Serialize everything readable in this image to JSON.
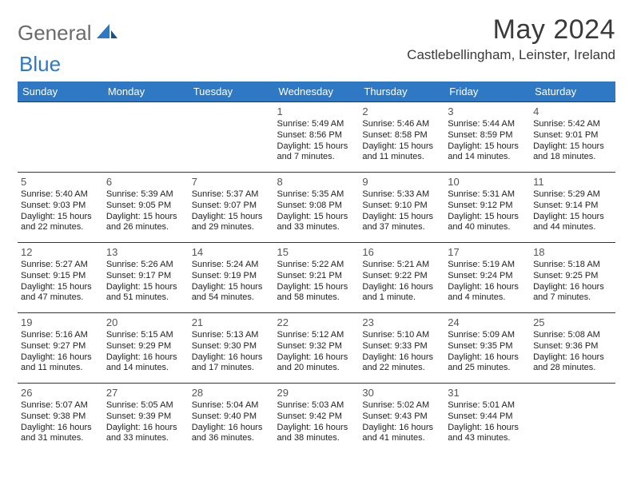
{
  "brand": {
    "part1": "General",
    "part2": "Blue"
  },
  "title": "May 2024",
  "location": "Castlebellingham, Leinster, Ireland",
  "colors": {
    "header_bg": "#2f78c4",
    "header_text": "#ffffff",
    "border": "#1f3a5f",
    "brand_gray": "#6b6b6b",
    "brand_blue": "#2f78c4"
  },
  "weekdays": [
    "Sunday",
    "Monday",
    "Tuesday",
    "Wednesday",
    "Thursday",
    "Friday",
    "Saturday"
  ],
  "weeks": [
    [
      {
        "n": "",
        "sr": "",
        "ss": "",
        "dl": ""
      },
      {
        "n": "",
        "sr": "",
        "ss": "",
        "dl": ""
      },
      {
        "n": "",
        "sr": "",
        "ss": "",
        "dl": ""
      },
      {
        "n": "1",
        "sr": "Sunrise: 5:49 AM",
        "ss": "Sunset: 8:56 PM",
        "dl": "Daylight: 15 hours and 7 minutes."
      },
      {
        "n": "2",
        "sr": "Sunrise: 5:46 AM",
        "ss": "Sunset: 8:58 PM",
        "dl": "Daylight: 15 hours and 11 minutes."
      },
      {
        "n": "3",
        "sr": "Sunrise: 5:44 AM",
        "ss": "Sunset: 8:59 PM",
        "dl": "Daylight: 15 hours and 14 minutes."
      },
      {
        "n": "4",
        "sr": "Sunrise: 5:42 AM",
        "ss": "Sunset: 9:01 PM",
        "dl": "Daylight: 15 hours and 18 minutes."
      }
    ],
    [
      {
        "n": "5",
        "sr": "Sunrise: 5:40 AM",
        "ss": "Sunset: 9:03 PM",
        "dl": "Daylight: 15 hours and 22 minutes."
      },
      {
        "n": "6",
        "sr": "Sunrise: 5:39 AM",
        "ss": "Sunset: 9:05 PM",
        "dl": "Daylight: 15 hours and 26 minutes."
      },
      {
        "n": "7",
        "sr": "Sunrise: 5:37 AM",
        "ss": "Sunset: 9:07 PM",
        "dl": "Daylight: 15 hours and 29 minutes."
      },
      {
        "n": "8",
        "sr": "Sunrise: 5:35 AM",
        "ss": "Sunset: 9:08 PM",
        "dl": "Daylight: 15 hours and 33 minutes."
      },
      {
        "n": "9",
        "sr": "Sunrise: 5:33 AM",
        "ss": "Sunset: 9:10 PM",
        "dl": "Daylight: 15 hours and 37 minutes."
      },
      {
        "n": "10",
        "sr": "Sunrise: 5:31 AM",
        "ss": "Sunset: 9:12 PM",
        "dl": "Daylight: 15 hours and 40 minutes."
      },
      {
        "n": "11",
        "sr": "Sunrise: 5:29 AM",
        "ss": "Sunset: 9:14 PM",
        "dl": "Daylight: 15 hours and 44 minutes."
      }
    ],
    [
      {
        "n": "12",
        "sr": "Sunrise: 5:27 AM",
        "ss": "Sunset: 9:15 PM",
        "dl": "Daylight: 15 hours and 47 minutes."
      },
      {
        "n": "13",
        "sr": "Sunrise: 5:26 AM",
        "ss": "Sunset: 9:17 PM",
        "dl": "Daylight: 15 hours and 51 minutes."
      },
      {
        "n": "14",
        "sr": "Sunrise: 5:24 AM",
        "ss": "Sunset: 9:19 PM",
        "dl": "Daylight: 15 hours and 54 minutes."
      },
      {
        "n": "15",
        "sr": "Sunrise: 5:22 AM",
        "ss": "Sunset: 9:21 PM",
        "dl": "Daylight: 15 hours and 58 minutes."
      },
      {
        "n": "16",
        "sr": "Sunrise: 5:21 AM",
        "ss": "Sunset: 9:22 PM",
        "dl": "Daylight: 16 hours and 1 minute."
      },
      {
        "n": "17",
        "sr": "Sunrise: 5:19 AM",
        "ss": "Sunset: 9:24 PM",
        "dl": "Daylight: 16 hours and 4 minutes."
      },
      {
        "n": "18",
        "sr": "Sunrise: 5:18 AM",
        "ss": "Sunset: 9:25 PM",
        "dl": "Daylight: 16 hours and 7 minutes."
      }
    ],
    [
      {
        "n": "19",
        "sr": "Sunrise: 5:16 AM",
        "ss": "Sunset: 9:27 PM",
        "dl": "Daylight: 16 hours and 11 minutes."
      },
      {
        "n": "20",
        "sr": "Sunrise: 5:15 AM",
        "ss": "Sunset: 9:29 PM",
        "dl": "Daylight: 16 hours and 14 minutes."
      },
      {
        "n": "21",
        "sr": "Sunrise: 5:13 AM",
        "ss": "Sunset: 9:30 PM",
        "dl": "Daylight: 16 hours and 17 minutes."
      },
      {
        "n": "22",
        "sr": "Sunrise: 5:12 AM",
        "ss": "Sunset: 9:32 PM",
        "dl": "Daylight: 16 hours and 20 minutes."
      },
      {
        "n": "23",
        "sr": "Sunrise: 5:10 AM",
        "ss": "Sunset: 9:33 PM",
        "dl": "Daylight: 16 hours and 22 minutes."
      },
      {
        "n": "24",
        "sr": "Sunrise: 5:09 AM",
        "ss": "Sunset: 9:35 PM",
        "dl": "Daylight: 16 hours and 25 minutes."
      },
      {
        "n": "25",
        "sr": "Sunrise: 5:08 AM",
        "ss": "Sunset: 9:36 PM",
        "dl": "Daylight: 16 hours and 28 minutes."
      }
    ],
    [
      {
        "n": "26",
        "sr": "Sunrise: 5:07 AM",
        "ss": "Sunset: 9:38 PM",
        "dl": "Daylight: 16 hours and 31 minutes."
      },
      {
        "n": "27",
        "sr": "Sunrise: 5:05 AM",
        "ss": "Sunset: 9:39 PM",
        "dl": "Daylight: 16 hours and 33 minutes."
      },
      {
        "n": "28",
        "sr": "Sunrise: 5:04 AM",
        "ss": "Sunset: 9:40 PM",
        "dl": "Daylight: 16 hours and 36 minutes."
      },
      {
        "n": "29",
        "sr": "Sunrise: 5:03 AM",
        "ss": "Sunset: 9:42 PM",
        "dl": "Daylight: 16 hours and 38 minutes."
      },
      {
        "n": "30",
        "sr": "Sunrise: 5:02 AM",
        "ss": "Sunset: 9:43 PM",
        "dl": "Daylight: 16 hours and 41 minutes."
      },
      {
        "n": "31",
        "sr": "Sunrise: 5:01 AM",
        "ss": "Sunset: 9:44 PM",
        "dl": "Daylight: 16 hours and 43 minutes."
      },
      {
        "n": "",
        "sr": "",
        "ss": "",
        "dl": ""
      }
    ]
  ]
}
